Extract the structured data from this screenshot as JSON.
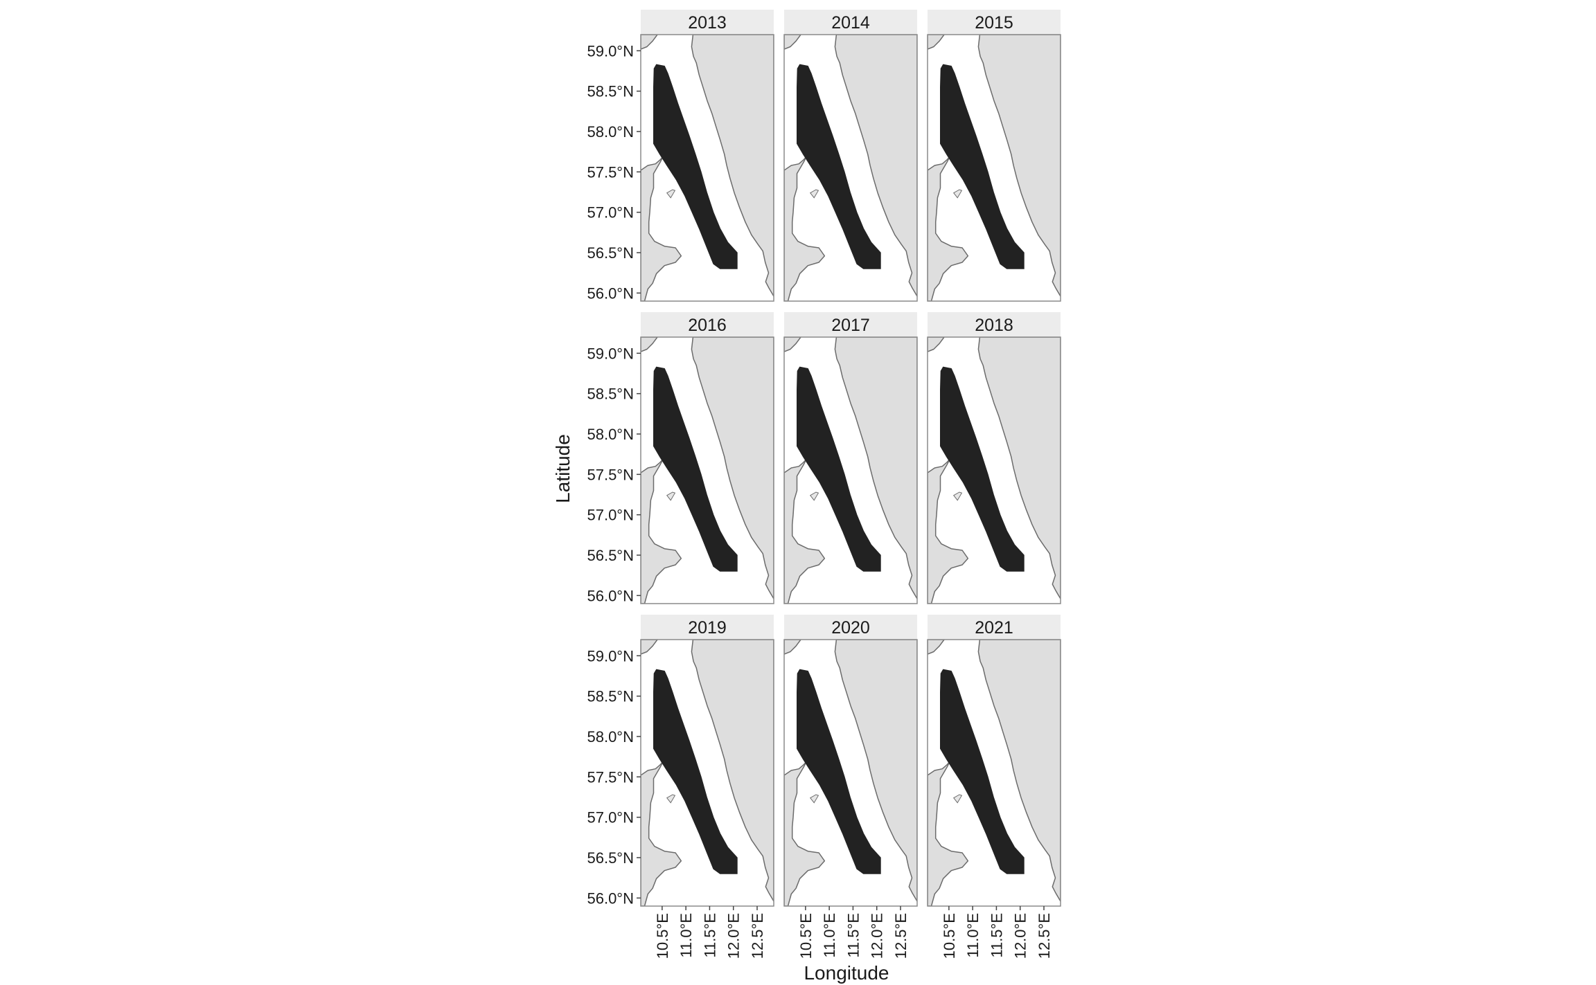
{
  "chart_data": {
    "type": "map",
    "xlabel": "Longitude",
    "ylabel": "Latitude",
    "xlim": [
      10.05,
      12.85
    ],
    "ylim": [
      55.9,
      59.2
    ],
    "x_ticks": [
      {
        "value": 10.5,
        "label": "10.5°E"
      },
      {
        "value": 11.0,
        "label": "11.0°E"
      },
      {
        "value": 11.5,
        "label": "11.5°E"
      },
      {
        "value": 12.0,
        "label": "12.0°E"
      },
      {
        "value": 12.5,
        "label": "12.5°E"
      }
    ],
    "y_ticks": [
      {
        "value": 59.0,
        "label": "59.0°N"
      },
      {
        "value": 58.5,
        "label": "58.5°N"
      },
      {
        "value": 58.0,
        "label": "58.0°N"
      },
      {
        "value": 57.5,
        "label": "57.5°N"
      },
      {
        "value": 57.0,
        "label": "57.0°N"
      },
      {
        "value": 56.5,
        "label": "56.5°N"
      },
      {
        "value": 56.0,
        "label": "56.0°N"
      }
    ],
    "facets": [
      {
        "label": "2013"
      },
      {
        "label": "2014"
      },
      {
        "label": "2015"
      },
      {
        "label": "2016"
      },
      {
        "label": "2017"
      },
      {
        "label": "2018"
      },
      {
        "label": "2019"
      },
      {
        "label": "2020"
      },
      {
        "label": "2021"
      }
    ],
    "colors": {
      "land": "#dedede",
      "sea": "#ffffff",
      "area": "#222222",
      "strip": "#ececec"
    },
    "grid": false,
    "legend": "none"
  }
}
